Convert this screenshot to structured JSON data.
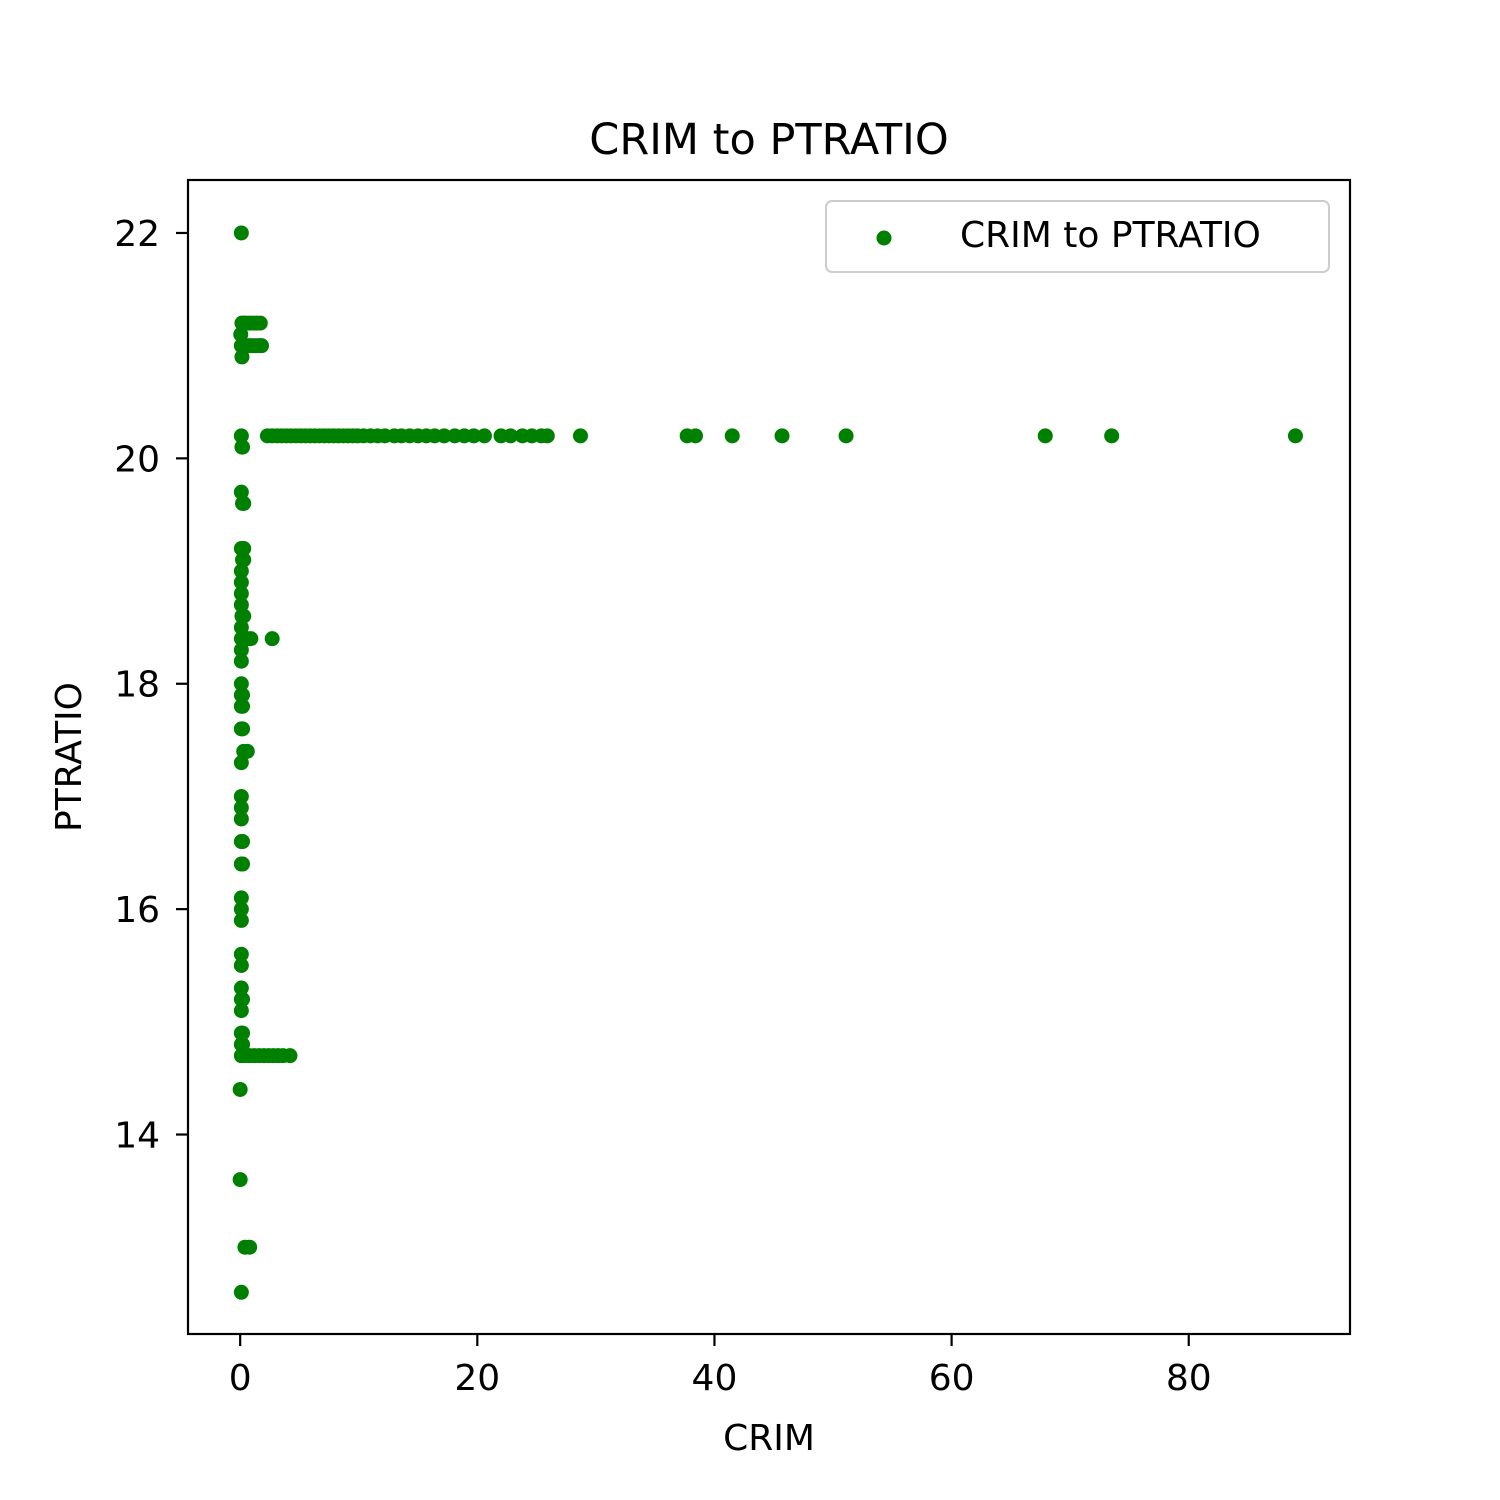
{
  "chart_data": {
    "type": "scatter",
    "title": "CRIM to PTRATIO",
    "xlabel": "CRIM",
    "ylabel": "PTRATIO",
    "xlim": [
      -4.4,
      93.6
    ],
    "ylim": [
      12.23,
      22.47
    ],
    "xticks": [
      0,
      20,
      40,
      60,
      80
    ],
    "yticks": [
      14,
      16,
      18,
      20,
      22
    ],
    "grid": false,
    "legend": {
      "placement": "top-right",
      "entries": [
        "CRIM to PTRATIO"
      ]
    },
    "colors": {
      "marker": "#008000",
      "axes": "#000000",
      "legend_border": "#cccccc"
    },
    "series": [
      {
        "name": "CRIM to PTRATIO",
        "points": [
          [
            0.1,
            22.0
          ],
          [
            0.05,
            21.1
          ],
          [
            0.15,
            21.2
          ],
          [
            0.3,
            21.2
          ],
          [
            0.5,
            21.2
          ],
          [
            0.8,
            21.2
          ],
          [
            1.1,
            21.2
          ],
          [
            1.4,
            21.2
          ],
          [
            1.7,
            21.2
          ],
          [
            0.1,
            21.0
          ],
          [
            0.4,
            21.0
          ],
          [
            0.7,
            21.0
          ],
          [
            1.0,
            21.0
          ],
          [
            1.3,
            21.0
          ],
          [
            1.6,
            21.0
          ],
          [
            1.8,
            21.0
          ],
          [
            0.15,
            20.9
          ],
          [
            0.1,
            20.2
          ],
          [
            0.15,
            20.1
          ],
          [
            0.2,
            20.1
          ],
          [
            2.3,
            20.2
          ],
          [
            2.7,
            20.2
          ],
          [
            3.1,
            20.2
          ],
          [
            3.5,
            20.2
          ],
          [
            3.9,
            20.2
          ],
          [
            4.3,
            20.2
          ],
          [
            4.7,
            20.2
          ],
          [
            5.1,
            20.2
          ],
          [
            5.5,
            20.2
          ],
          [
            5.9,
            20.2
          ],
          [
            6.3,
            20.2
          ],
          [
            6.7,
            20.2
          ],
          [
            7.1,
            20.2
          ],
          [
            7.5,
            20.2
          ],
          [
            7.9,
            20.2
          ],
          [
            8.3,
            20.2
          ],
          [
            8.7,
            20.2
          ],
          [
            9.1,
            20.2
          ],
          [
            9.5,
            20.2
          ],
          [
            9.9,
            20.2
          ],
          [
            10.4,
            20.2
          ],
          [
            11.0,
            20.2
          ],
          [
            11.6,
            20.2
          ],
          [
            12.2,
            20.2
          ],
          [
            13.0,
            20.2
          ],
          [
            13.6,
            20.2
          ],
          [
            14.3,
            20.2
          ],
          [
            15.0,
            20.2
          ],
          [
            15.7,
            20.2
          ],
          [
            16.4,
            20.2
          ],
          [
            17.2,
            20.2
          ],
          [
            18.1,
            20.2
          ],
          [
            18.9,
            20.2
          ],
          [
            19.7,
            20.2
          ],
          [
            20.6,
            20.2
          ],
          [
            22.0,
            20.2
          ],
          [
            22.8,
            20.2
          ],
          [
            23.8,
            20.2
          ],
          [
            24.6,
            20.2
          ],
          [
            25.4,
            20.2
          ],
          [
            25.9,
            20.2
          ],
          [
            28.7,
            20.2
          ],
          [
            37.7,
            20.2
          ],
          [
            38.4,
            20.2
          ],
          [
            41.5,
            20.2
          ],
          [
            45.7,
            20.2
          ],
          [
            51.1,
            20.2
          ],
          [
            67.9,
            20.2
          ],
          [
            73.5,
            20.2
          ],
          [
            89.0,
            20.2
          ],
          [
            0.1,
            19.7
          ],
          [
            0.2,
            19.6
          ],
          [
            0.3,
            19.6
          ],
          [
            0.1,
            19.2
          ],
          [
            0.3,
            19.2
          ],
          [
            0.2,
            19.1
          ],
          [
            0.3,
            19.1
          ],
          [
            0.1,
            19.0
          ],
          [
            0.1,
            18.9
          ],
          [
            0.1,
            18.8
          ],
          [
            0.1,
            18.7
          ],
          [
            0.15,
            18.6
          ],
          [
            0.3,
            18.6
          ],
          [
            0.1,
            18.5
          ],
          [
            0.1,
            18.4
          ],
          [
            0.3,
            18.4
          ],
          [
            0.6,
            18.4
          ],
          [
            0.9,
            18.4
          ],
          [
            2.7,
            18.4
          ],
          [
            0.1,
            18.3
          ],
          [
            0.1,
            18.2
          ],
          [
            0.1,
            18.0
          ],
          [
            0.1,
            17.9
          ],
          [
            0.2,
            17.9
          ],
          [
            0.1,
            17.8
          ],
          [
            0.2,
            17.8
          ],
          [
            0.1,
            17.6
          ],
          [
            0.2,
            17.6
          ],
          [
            0.3,
            17.4
          ],
          [
            0.6,
            17.4
          ],
          [
            0.1,
            17.3
          ],
          [
            0.1,
            17.0
          ],
          [
            0.1,
            16.9
          ],
          [
            0.1,
            16.8
          ],
          [
            0.1,
            16.6
          ],
          [
            0.2,
            16.6
          ],
          [
            0.1,
            16.4
          ],
          [
            0.2,
            16.4
          ],
          [
            0.1,
            16.1
          ],
          [
            0.1,
            16.0
          ],
          [
            0.1,
            15.9
          ],
          [
            0.1,
            15.6
          ],
          [
            0.1,
            15.5
          ],
          [
            0.1,
            15.3
          ],
          [
            0.1,
            15.2
          ],
          [
            0.2,
            15.2
          ],
          [
            0.1,
            15.1
          ],
          [
            0.1,
            14.9
          ],
          [
            0.2,
            14.9
          ],
          [
            0.1,
            14.8
          ],
          [
            0.2,
            14.8
          ],
          [
            0.1,
            14.7
          ],
          [
            0.4,
            14.7
          ],
          [
            0.8,
            14.7
          ],
          [
            1.2,
            14.7
          ],
          [
            1.6,
            14.7
          ],
          [
            2.0,
            14.7
          ],
          [
            2.4,
            14.7
          ],
          [
            2.8,
            14.7
          ],
          [
            3.2,
            14.7
          ],
          [
            3.6,
            14.7
          ],
          [
            4.2,
            14.7
          ],
          [
            0.0,
            14.4
          ],
          [
            0.0,
            13.6
          ],
          [
            0.4,
            13.0
          ],
          [
            0.8,
            13.0
          ],
          [
            0.1,
            12.6
          ]
        ]
      }
    ]
  }
}
